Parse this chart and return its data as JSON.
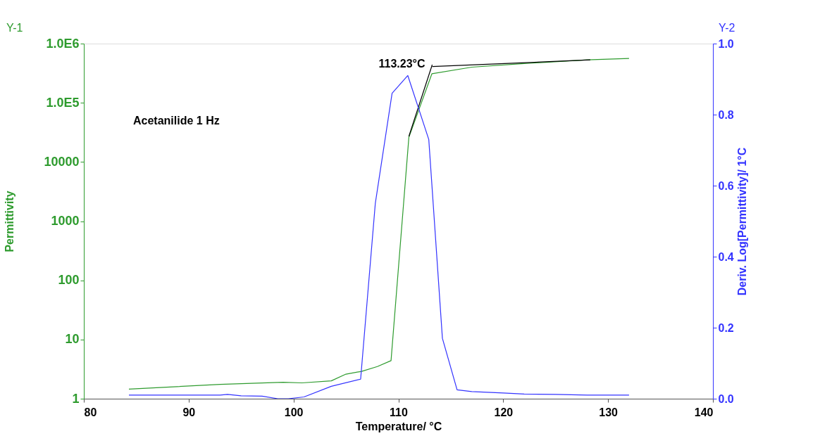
{
  "chart_data": {
    "type": "line",
    "xlabel": "Temperature/ °C",
    "ylabel": "Permittivity",
    "y2label": "Deriv. Log[Permittivity]/ 1°C",
    "annotations": [
      "Acetanilide 1 Hz",
      "Y-1",
      "Y-2",
      {
        "text": "113.23°C",
        "x": 113.23,
        "y": 410000
      }
    ],
    "log": "y",
    "grid": false,
    "marker": "none",
    "line_style": "solid",
    "xlim": [
      80,
      140
    ],
    "xticks": [
      80,
      90,
      100,
      110,
      120,
      130,
      140
    ],
    "ylim": [
      1,
      1000000
    ],
    "yticks": [
      1,
      10,
      100,
      1000,
      10000,
      {
        "value": 100000,
        "label": "1.0E5"
      },
      {
        "value": 1000000,
        "label": "1.0E6"
      }
    ],
    "y2lim": [
      0,
      1
    ],
    "y2ticks": [
      {
        "value": 0,
        "label": "0.0"
      },
      {
        "value": 0.2,
        "label": "0.2"
      },
      {
        "value": 0.4,
        "label": "0.4"
      },
      {
        "value": 0.6,
        "label": "0.6"
      },
      {
        "value": 0.8,
        "label": "0.8"
      },
      {
        "value": 1,
        "label": "1.0"
      }
    ],
    "series": [
      {
        "color": "#2e9b2e",
        "x": [
          84.3,
          93,
          99,
          100.8,
          103.6,
          105,
          106.5,
          108,
          109.3,
          111,
          113.2,
          117,
          122,
          128,
          132
        ],
        "values": [
          1.45,
          1.75,
          1.9,
          1.85,
          2.0,
          2.6,
          2.9,
          3.5,
          4.4,
          26000,
          310000,
          400000,
          460000,
          530000,
          560000
        ]
      },
      {
        "color": "#3333ff",
        "axis": "y2",
        "x": [
          84.3,
          93,
          93.7,
          95,
          97,
          98.5,
          99.5,
          101,
          103.6,
          106.4,
          107.8,
          109.4,
          110.9,
          112.9,
          114.2,
          115.6,
          117,
          120,
          122,
          125,
          128,
          132
        ],
        "values": [
          0.01,
          0.01,
          0.012,
          0.008,
          0.007,
          0.0,
          0.0,
          0.005,
          0.035,
          0.055,
          0.55,
          0.86,
          0.91,
          0.73,
          0.17,
          0.025,
          0.02,
          0.016,
          0.013,
          0.012,
          0.01,
          0.01
        ]
      },
      {
        "color": "#000000",
        "x": [
          111.0,
          113.23
        ],
        "values": [
          27000,
          440000
        ]
      },
      {
        "color": "#000000",
        "x": [
          113.23,
          128.3
        ],
        "values": [
          410000,
          530000
        ]
      }
    ]
  }
}
